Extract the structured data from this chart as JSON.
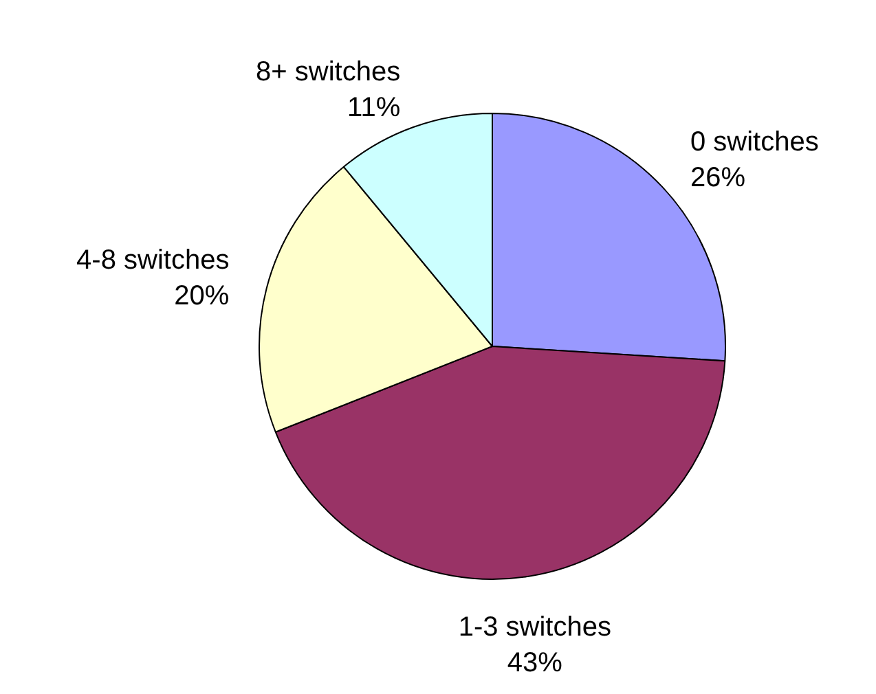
{
  "chart_data": {
    "type": "pie",
    "categories": [
      "0 switches",
      "1-3 switches",
      "4-8 switches",
      "8+ switches"
    ],
    "values": [
      26,
      43,
      20,
      11
    ],
    "value_labels": [
      "26%",
      "43%",
      "20%",
      "11%"
    ],
    "colors": [
      "#9999ff",
      "#993366",
      "#ffffcc",
      "#ccffff"
    ],
    "legend": false
  }
}
